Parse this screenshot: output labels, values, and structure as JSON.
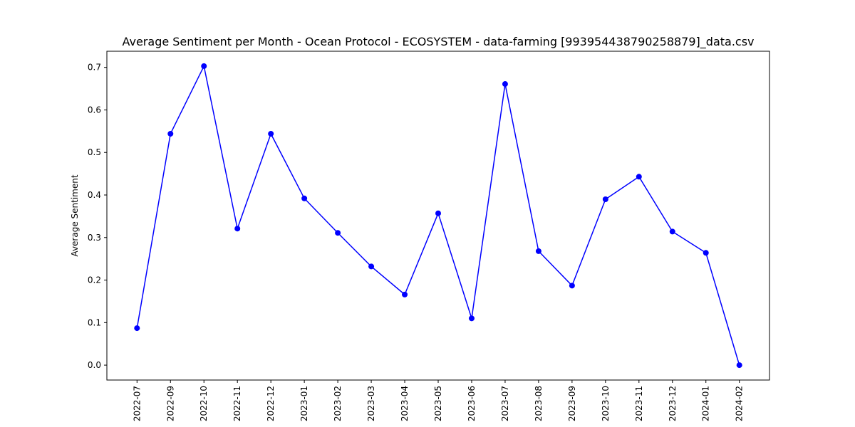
{
  "chart_data": {
    "type": "line",
    "title": "Average Sentiment per Month - Ocean Protocol - ECOSYSTEM - data-farming [993954438790258879]_data.csv",
    "xlabel": "",
    "ylabel": "Average Sentiment",
    "x": [
      "2022-07",
      "2022-09",
      "2022-10",
      "2022-11",
      "2022-12",
      "2023-01",
      "2023-02",
      "2023-03",
      "2023-04",
      "2023-05",
      "2023-06",
      "2023-07",
      "2023-08",
      "2023-09",
      "2023-10",
      "2023-11",
      "2023-12",
      "2024-01",
      "2024-02"
    ],
    "series": [
      {
        "values": [
          0.087,
          0.544,
          0.703,
          0.321,
          0.544,
          0.392,
          0.311,
          0.232,
          0.166,
          0.357,
          0.11,
          0.661,
          0.268,
          0.187,
          0.39,
          0.443,
          0.314,
          0.264,
          0.0
        ],
        "color": "#0000ff"
      }
    ],
    "yticks": [
      "0.0",
      "0.1",
      "0.2",
      "0.3",
      "0.4",
      "0.5",
      "0.6",
      "0.7"
    ],
    "ylim": [
      -0.035,
      0.738
    ],
    "grid": false,
    "marker": "circle"
  }
}
